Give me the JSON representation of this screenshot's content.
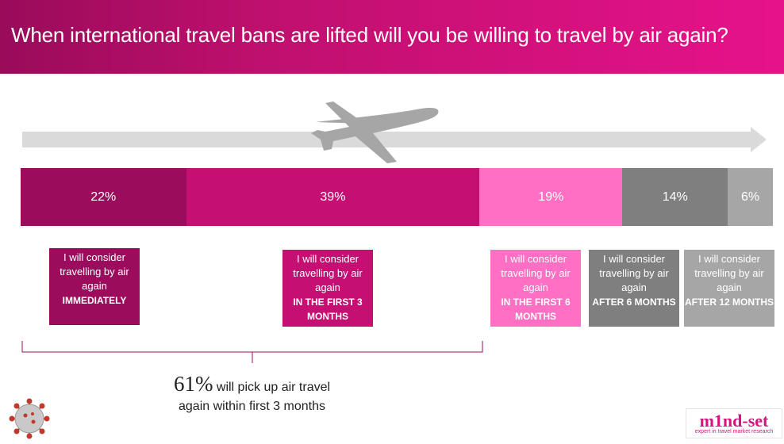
{
  "title": "When international travel bans are lifted will you be willing to travel by air again?",
  "chart_data": {
    "type": "bar",
    "orientation": "stacked-horizontal",
    "unit": "%",
    "segments": [
      {
        "value": 22,
        "label": "22%",
        "color": "#9b0d5c",
        "desc": "I will consider travelling by air again",
        "when": "IMMEDIATELY"
      },
      {
        "value": 39,
        "label": "39%",
        "color": "#c50f73",
        "desc": "I will consider travelling by air again",
        "when": "IN THE FIRST 3 MONTHS"
      },
      {
        "value": 19,
        "label": "19%",
        "color": "#ff6fc3",
        "desc": "I will consider travelling by air again",
        "when": "IN THE FIRST 6 MONTHS"
      },
      {
        "value": 14,
        "label": "14%",
        "color": "#7f7f7f",
        "desc": "I will consider travelling by air again",
        "when": "AFTER 6 MONTHS"
      },
      {
        "value": 6,
        "label": "6%",
        "color": "#a6a6a6",
        "desc": "I will consider travelling by air again",
        "when": "AFTER 12 MONTHS"
      }
    ]
  },
  "summary": {
    "percent": "61%",
    "line1": " will pick up air travel",
    "line2": "again within first 3 months"
  },
  "logo": {
    "word": "m1nd-set",
    "tagline": "expert in travel market research"
  },
  "icons": {
    "plane": "airplane-icon",
    "virus": "coronavirus-icon"
  }
}
